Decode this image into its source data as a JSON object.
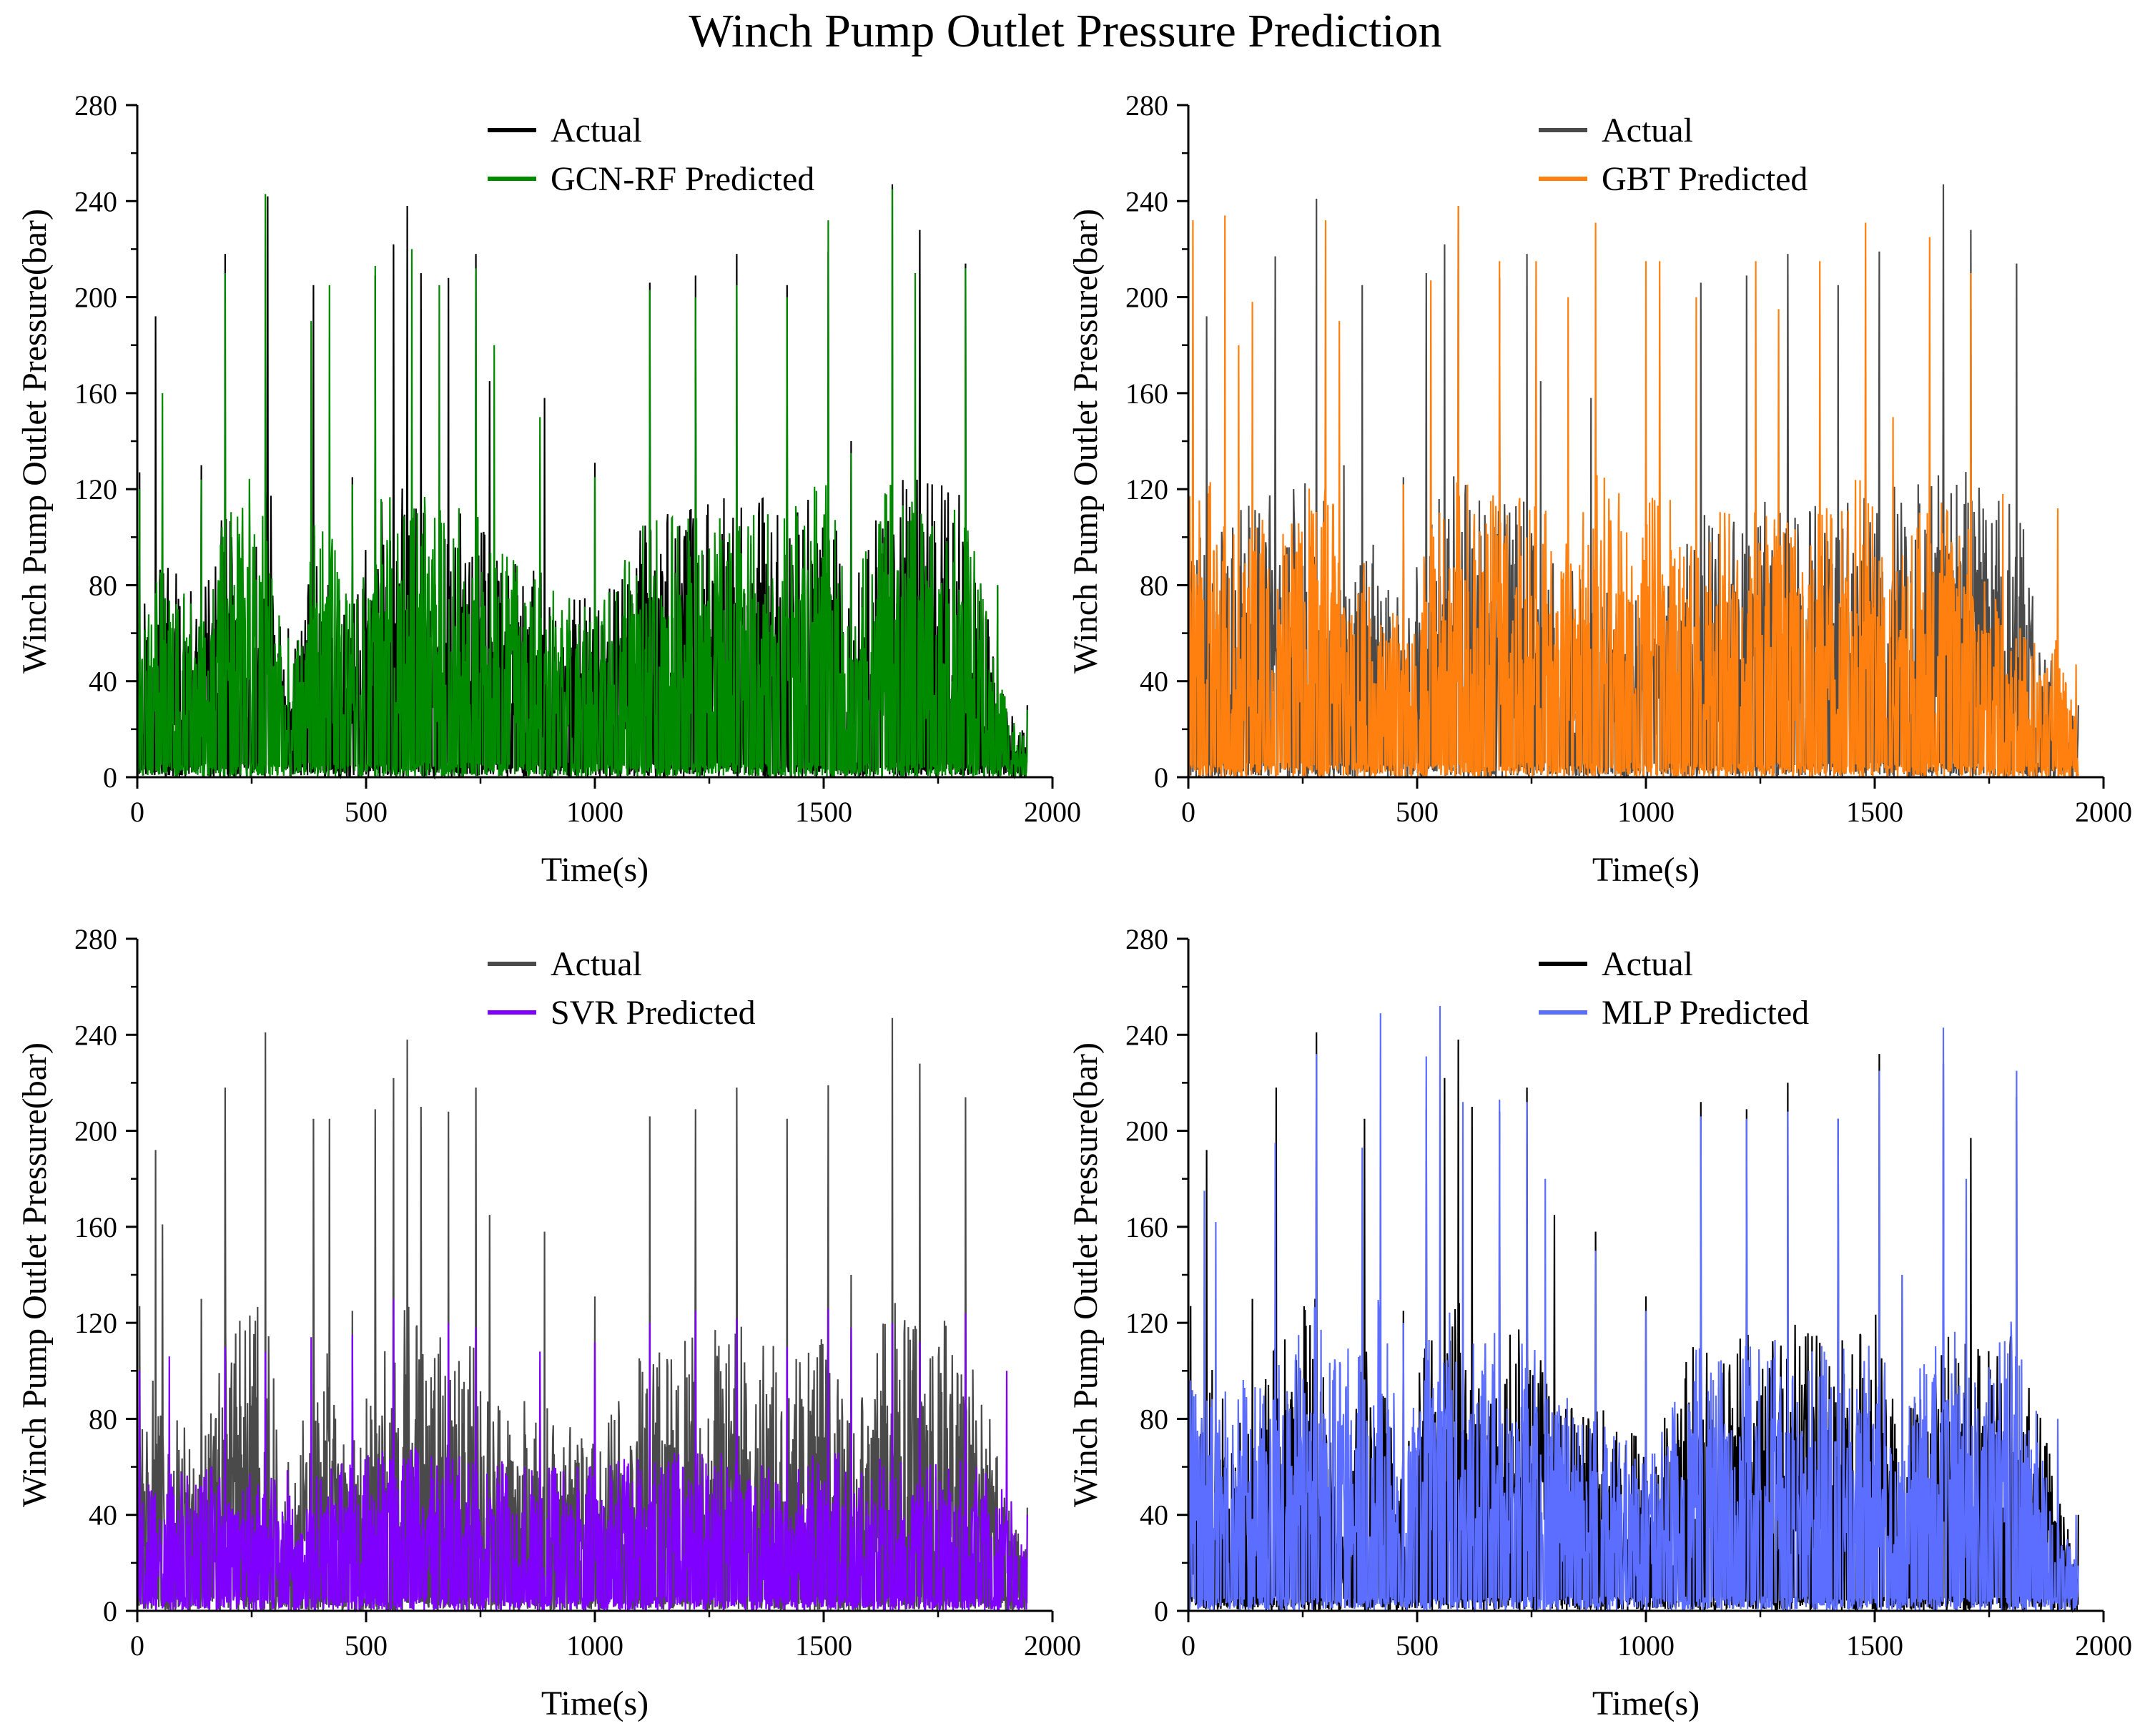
{
  "figure": {
    "title": "Winch Pump Outlet Pressure Prediction"
  },
  "chart_data": [
    {
      "type": "line",
      "panel": "top-left",
      "xlabel": "Time(s)",
      "ylabel": "Winch Pump Outlet Pressure(bar)",
      "xlim": [
        0,
        2000
      ],
      "ylim": [
        0,
        280
      ],
      "xticks": [
        0,
        500,
        1000,
        1500,
        2000
      ],
      "yticks": [
        0,
        40,
        80,
        120,
        160,
        200,
        240,
        280
      ],
      "legend_position": "top-center",
      "data_range": [
        0,
        1945
      ],
      "series": [
        {
          "name": "Actual",
          "color": "#000000",
          "seed": 11,
          "peaks": [
            [
              5,
              127
            ],
            [
              40,
              192
            ],
            [
              140,
              130
            ],
            [
              192,
              218
            ],
            [
              260,
              96
            ],
            [
              285,
              242
            ],
            [
              330,
              62
            ],
            [
              385,
              205
            ],
            [
              470,
              125
            ],
            [
              520,
              209
            ],
            [
              560,
              222
            ],
            [
              590,
              238
            ],
            [
              620,
              210
            ],
            [
              680,
              208
            ],
            [
              740,
              218
            ],
            [
              770,
              165
            ],
            [
              890,
              158
            ],
            [
              1000,
              131
            ],
            [
              1120,
              206
            ],
            [
              1220,
              209
            ],
            [
              1310,
              218
            ],
            [
              1420,
              205
            ],
            [
              1510,
              219
            ],
            [
              1560,
              140
            ],
            [
              1650,
              247
            ],
            [
              1710,
              228
            ],
            [
              1810,
              214
            ],
            [
              1880,
              80
            ],
            [
              1945,
              30
            ]
          ]
        },
        {
          "name": "GCN-RF Predicted",
          "color": "#008a00",
          "seed": 12,
          "peaks": [
            [
              5,
              120
            ],
            [
              55,
              160
            ],
            [
              140,
              124
            ],
            [
              192,
              210
            ],
            [
              280,
              243
            ],
            [
              330,
              58
            ],
            [
              380,
              190
            ],
            [
              420,
              205
            ],
            [
              470,
              122
            ],
            [
              520,
              213
            ],
            [
              600,
              220
            ],
            [
              660,
              205
            ],
            [
              740,
              212
            ],
            [
              780,
              180
            ],
            [
              880,
              150
            ],
            [
              1000,
              125
            ],
            [
              1120,
              203
            ],
            [
              1220,
              200
            ],
            [
              1310,
              205
            ],
            [
              1420,
              200
            ],
            [
              1510,
              232
            ],
            [
              1560,
              135
            ],
            [
              1650,
              245
            ],
            [
              1700,
              210
            ],
            [
              1810,
              212
            ],
            [
              1880,
              80
            ],
            [
              1945,
              28
            ]
          ]
        }
      ]
    },
    {
      "type": "line",
      "panel": "top-right",
      "xlabel": "Time(s)",
      "ylabel": "Winch Pump Outlet Pressure(bar)",
      "xlim": [
        0,
        2000
      ],
      "ylim": [
        0,
        280
      ],
      "xticks": [
        0,
        500,
        1000,
        1500,
        2000
      ],
      "yticks": [
        0,
        40,
        80,
        120,
        160,
        200,
        240,
        280
      ],
      "legend_position": "top-right",
      "data_range": [
        0,
        1945
      ],
      "series": [
        {
          "name": "Actual",
          "color": "#4a4a4a",
          "seed": 21,
          "peaks": [
            [
              40,
              192
            ],
            [
              190,
              217
            ],
            [
              280,
              241
            ],
            [
              340,
              130
            ],
            [
              380,
              205
            ],
            [
              470,
              125
            ],
            [
              520,
              210
            ],
            [
              560,
              222
            ],
            [
              590,
              238
            ],
            [
              680,
              208
            ],
            [
              740,
              218
            ],
            [
              770,
              165
            ],
            [
              880,
              158
            ],
            [
              1000,
              131
            ],
            [
              1120,
              206
            ],
            [
              1220,
              209
            ],
            [
              1310,
              218
            ],
            [
              1420,
              205
            ],
            [
              1510,
              219
            ],
            [
              1650,
              247
            ],
            [
              1710,
              228
            ],
            [
              1810,
              214
            ],
            [
              1945,
              30
            ]
          ]
        },
        {
          "name": "GBT Predicted",
          "color": "#ff7f0f",
          "seed": 22,
          "peaks": [
            [
              10,
              232
            ],
            [
              80,
              234
            ],
            [
              110,
              180
            ],
            [
              140,
              198
            ],
            [
              300,
              232
            ],
            [
              330,
              190
            ],
            [
              470,
              122
            ],
            [
              530,
              207
            ],
            [
              590,
              238
            ],
            [
              680,
              215
            ],
            [
              760,
              215
            ],
            [
              830,
              200
            ],
            [
              890,
              231
            ],
            [
              1000,
              215
            ],
            [
              1030,
              215
            ],
            [
              1110,
              200
            ],
            [
              1240,
              215
            ],
            [
              1290,
              195
            ],
            [
              1380,
              215
            ],
            [
              1480,
              231
            ],
            [
              1540,
              150
            ],
            [
              1620,
              225
            ],
            [
              1710,
              210
            ],
            [
              1780,
              118
            ],
            [
              1900,
              112
            ],
            [
              1940,
              47
            ]
          ]
        }
      ]
    },
    {
      "type": "line",
      "panel": "bottom-left",
      "xlabel": "Time(s)",
      "ylabel": "Winch Pump Outlet Pressure(bar)",
      "xlim": [
        0,
        2000
      ],
      "ylim": [
        0,
        280
      ],
      "xticks": [
        0,
        500,
        1000,
        1500,
        2000
      ],
      "yticks": [
        0,
        40,
        80,
        120,
        160,
        200,
        240,
        280
      ],
      "legend_position": "top-center",
      "data_range": [
        0,
        1945
      ],
      "series": [
        {
          "name": "Actual",
          "color": "#4a4a4a",
          "seed": 31,
          "peaks": [
            [
              5,
              127
            ],
            [
              40,
              192
            ],
            [
              55,
              161
            ],
            [
              140,
              130
            ],
            [
              192,
              218
            ],
            [
              280,
              241
            ],
            [
              330,
              62
            ],
            [
              385,
              205
            ],
            [
              420,
              205
            ],
            [
              470,
              125
            ],
            [
              520,
              209
            ],
            [
              560,
              222
            ],
            [
              590,
              238
            ],
            [
              620,
              210
            ],
            [
              680,
              208
            ],
            [
              740,
              218
            ],
            [
              770,
              165
            ],
            [
              890,
              158
            ],
            [
              1000,
              131
            ],
            [
              1120,
              206
            ],
            [
              1220,
              209
            ],
            [
              1310,
              218
            ],
            [
              1420,
              205
            ],
            [
              1510,
              219
            ],
            [
              1560,
              140
            ],
            [
              1650,
              247
            ],
            [
              1710,
              228
            ],
            [
              1810,
              214
            ],
            [
              1945,
              43
            ]
          ]
        },
        {
          "name": "SVR Predicted",
          "color": "#8000ff",
          "seed": 32,
          "peaks": [
            [
              5,
              100
            ],
            [
              70,
              106
            ],
            [
              192,
              110
            ],
            [
              280,
              108
            ],
            [
              380,
              114
            ],
            [
              470,
              115
            ],
            [
              560,
              130
            ],
            [
              680,
              120
            ],
            [
              740,
              118
            ],
            [
              880,
              108
            ],
            [
              1000,
              112
            ],
            [
              1120,
              120
            ],
            [
              1220,
              125
            ],
            [
              1310,
              122
            ],
            [
              1420,
              110
            ],
            [
              1510,
              126
            ],
            [
              1560,
              118
            ],
            [
              1650,
              120
            ],
            [
              1710,
              112
            ],
            [
              1810,
              124
            ],
            [
              1900,
              100
            ],
            [
              1945,
              40
            ]
          ]
        }
      ]
    },
    {
      "type": "line",
      "panel": "bottom-right",
      "xlabel": "Time(s)",
      "ylabel": "Winch Pump Outlet Pressure(bar)",
      "xlim": [
        0,
        2000
      ],
      "ylim": [
        0,
        280
      ],
      "xticks": [
        0,
        500,
        1000,
        1500,
        2000
      ],
      "yticks": [
        0,
        40,
        80,
        120,
        160,
        200,
        240,
        280
      ],
      "legend_position": "top-right",
      "data_range": [
        0,
        1945
      ],
      "series": [
        {
          "name": "Actual",
          "color": "#000000",
          "seed": 41,
          "peaks": [
            [
              5,
              127
            ],
            [
              40,
              192
            ],
            [
              140,
              130
            ],
            [
              192,
              218
            ],
            [
              280,
              241
            ],
            [
              330,
              62
            ],
            [
              385,
              205
            ],
            [
              470,
              125
            ],
            [
              520,
              209
            ],
            [
              560,
              222
            ],
            [
              590,
              238
            ],
            [
              620,
              210
            ],
            [
              680,
              208
            ],
            [
              740,
              218
            ],
            [
              800,
              165
            ],
            [
              890,
              158
            ],
            [
              1000,
              131
            ],
            [
              1120,
              212
            ],
            [
              1220,
              209
            ],
            [
              1310,
              220
            ],
            [
              1420,
              205
            ],
            [
              1510,
              232
            ],
            [
              1560,
              140
            ],
            [
              1650,
              228
            ],
            [
              1710,
              197
            ],
            [
              1810,
              214
            ],
            [
              1945,
              40
            ]
          ]
        },
        {
          "name": "MLP Predicted",
          "color": "#5c6eff",
          "seed": 42,
          "peaks": [
            [
              35,
              175
            ],
            [
              60,
              162
            ],
            [
              190,
              195
            ],
            [
              280,
              232
            ],
            [
              380,
              193
            ],
            [
              420,
              249
            ],
            [
              470,
              120
            ],
            [
              520,
              231
            ],
            [
              550,
              252
            ],
            [
              600,
              212
            ],
            [
              680,
              213
            ],
            [
              740,
              212
            ],
            [
              780,
              180
            ],
            [
              890,
              150
            ],
            [
              1000,
              125
            ],
            [
              1120,
              206
            ],
            [
              1220,
              205
            ],
            [
              1310,
              208
            ],
            [
              1420,
              205
            ],
            [
              1510,
              225
            ],
            [
              1560,
              140
            ],
            [
              1650,
              243
            ],
            [
              1700,
              180
            ],
            [
              1810,
              225
            ],
            [
              1900,
              80
            ],
            [
              1940,
              40
            ]
          ]
        }
      ]
    }
  ]
}
